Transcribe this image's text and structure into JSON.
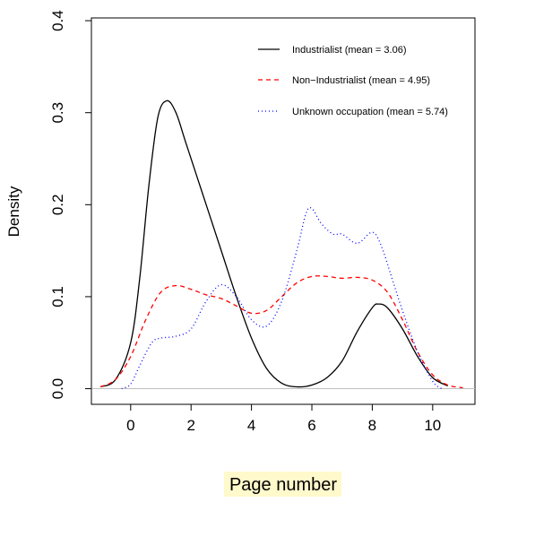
{
  "chart_data": {
    "type": "line",
    "title": "",
    "xlabel": "Page number",
    "ylabel": "Density",
    "xlim": [
      -1.3,
      11.4
    ],
    "ylim": [
      -0.017,
      0.403
    ],
    "x_ticks": [
      0,
      2,
      4,
      6,
      8,
      10
    ],
    "y_ticks": [
      0.0,
      0.1,
      0.2,
      0.3,
      0.4
    ],
    "x_tick_labels": [
      "0",
      "2",
      "4",
      "6",
      "8",
      "10"
    ],
    "y_tick_labels": [
      "0.0",
      "0.1",
      "0.2",
      "0.3",
      "0.4"
    ],
    "baseline": 0,
    "legend_position": "top-right",
    "series": [
      {
        "name": "Industrialist (mean = 3.06)",
        "color": "#000000",
        "style": "solid",
        "x": [
          -1.0,
          -0.5,
          0.0,
          0.3,
          0.6,
          0.9,
          1.2,
          1.5,
          1.8,
          2.2,
          2.6,
          3.0,
          3.5,
          4.0,
          4.5,
          5.0,
          5.5,
          6.0,
          6.5,
          7.0,
          7.5,
          8.0,
          8.2,
          8.5,
          9.0,
          9.5,
          10.0,
          10.5
        ],
        "y": [
          0.002,
          0.01,
          0.05,
          0.12,
          0.22,
          0.295,
          0.313,
          0.3,
          0.27,
          0.23,
          0.19,
          0.15,
          0.1,
          0.055,
          0.022,
          0.006,
          0.002,
          0.004,
          0.012,
          0.03,
          0.062,
          0.088,
          0.092,
          0.088,
          0.065,
          0.035,
          0.012,
          0.003
        ]
      },
      {
        "name": "Non−Industrialist (mean = 4.95)",
        "color": "#ff0000",
        "style": "dashed",
        "x": [
          -1.0,
          -0.5,
          0.0,
          0.5,
          1.0,
          1.5,
          2.0,
          2.5,
          3.0,
          3.5,
          4.0,
          4.5,
          5.0,
          5.5,
          6.0,
          6.5,
          7.0,
          7.5,
          8.0,
          8.5,
          9.0,
          9.5,
          10.0,
          10.5,
          11.0
        ],
        "y": [
          0.002,
          0.01,
          0.035,
          0.075,
          0.105,
          0.112,
          0.108,
          0.102,
          0.098,
          0.09,
          0.082,
          0.085,
          0.1,
          0.115,
          0.122,
          0.122,
          0.12,
          0.121,
          0.118,
          0.105,
          0.075,
          0.04,
          0.015,
          0.004,
          0.001
        ]
      },
      {
        "name": "Unknown occupation (mean = 5.74)",
        "color": "#0000ff",
        "style": "dotted",
        "x": [
          -0.3,
          0.0,
          0.3,
          0.7,
          1.0,
          1.5,
          2.0,
          2.5,
          3.0,
          3.5,
          4.0,
          4.5,
          5.0,
          5.5,
          5.8,
          6.0,
          6.3,
          6.7,
          7.0,
          7.5,
          8.0,
          8.3,
          8.7,
          9.0,
          9.5,
          10.0,
          10.3
        ],
        "y": [
          0.0,
          0.005,
          0.025,
          0.05,
          0.055,
          0.057,
          0.065,
          0.095,
          0.113,
          0.1,
          0.075,
          0.068,
          0.095,
          0.15,
          0.19,
          0.196,
          0.18,
          0.168,
          0.168,
          0.158,
          0.17,
          0.155,
          0.115,
          0.085,
          0.04,
          0.008,
          0.0
        ]
      }
    ]
  }
}
